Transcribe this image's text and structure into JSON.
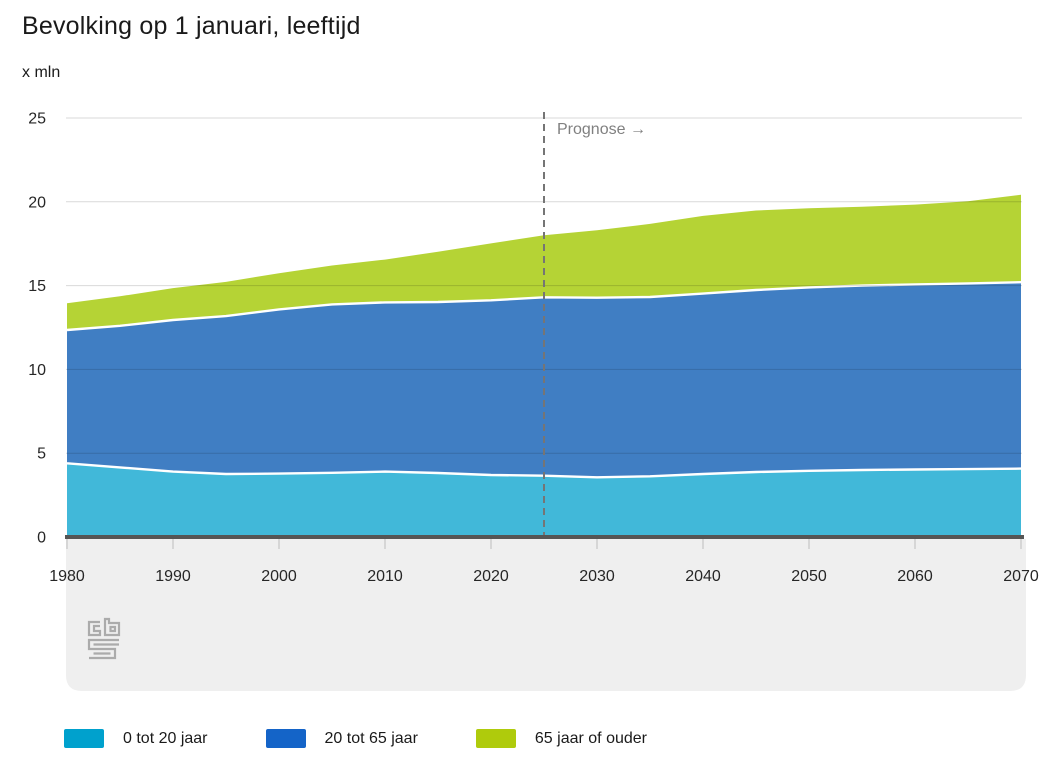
{
  "header": {
    "title": "Bevolking op 1 januari, leeftijd",
    "unit_label": "x mln"
  },
  "annotation": {
    "label": "Prognose →",
    "forecast_start_year": 2025
  },
  "chart_data": {
    "type": "area",
    "stacked": true,
    "title": "Bevolking op 1 januari, leeftijd",
    "ylabel": "x mln",
    "xlim": [
      1980,
      2070
    ],
    "ylim": [
      0,
      25
    ],
    "yticks": [
      0,
      5,
      10,
      15,
      20,
      25
    ],
    "xticks": [
      1980,
      1990,
      2000,
      2010,
      2020,
      2030,
      2040,
      2050,
      2060,
      2070
    ],
    "grid": true,
    "legend_position": "bottom",
    "x": [
      1980,
      1985,
      1990,
      1995,
      2000,
      2005,
      2010,
      2015,
      2020,
      2025,
      2030,
      2035,
      2040,
      2045,
      2050,
      2055,
      2060,
      2065,
      2070
    ],
    "series": [
      {
        "name": "0 tot 20 jaar",
        "fill": "#41b8d9",
        "legend_color": "#00a1cd",
        "values": [
          4.4,
          4.15,
          3.9,
          3.76,
          3.78,
          3.83,
          3.9,
          3.82,
          3.7,
          3.66,
          3.56,
          3.62,
          3.76,
          3.88,
          3.95,
          4.0,
          4.03,
          4.05,
          4.08
        ]
      },
      {
        "name": "20 tot 65 jaar",
        "fill": "#407ec3",
        "legend_color": "#1464c8",
        "values": [
          7.95,
          8.45,
          9.05,
          9.42,
          9.8,
          10.05,
          10.1,
          10.2,
          10.42,
          10.64,
          10.72,
          10.7,
          10.76,
          10.86,
          10.94,
          11.0,
          11.04,
          11.08,
          11.12
        ]
      },
      {
        "name": "65 jaar of ouder",
        "fill": "#b5d335",
        "legend_color": "#afcb0c",
        "values": [
          1.6,
          1.76,
          1.9,
          2.04,
          2.16,
          2.32,
          2.55,
          3.0,
          3.4,
          3.7,
          4.02,
          4.36,
          4.64,
          4.74,
          4.73,
          4.7,
          4.76,
          4.9,
          5.22
        ]
      }
    ]
  },
  "colors": {
    "grid": "#d9d9d9",
    "axis": "#555555",
    "band": "#efefef",
    "tick_mark": "#bdbdbd",
    "tick_text": "#262626",
    "dashed_line": "#757575",
    "separator": "#ffffff",
    "logo": "#ababab"
  }
}
